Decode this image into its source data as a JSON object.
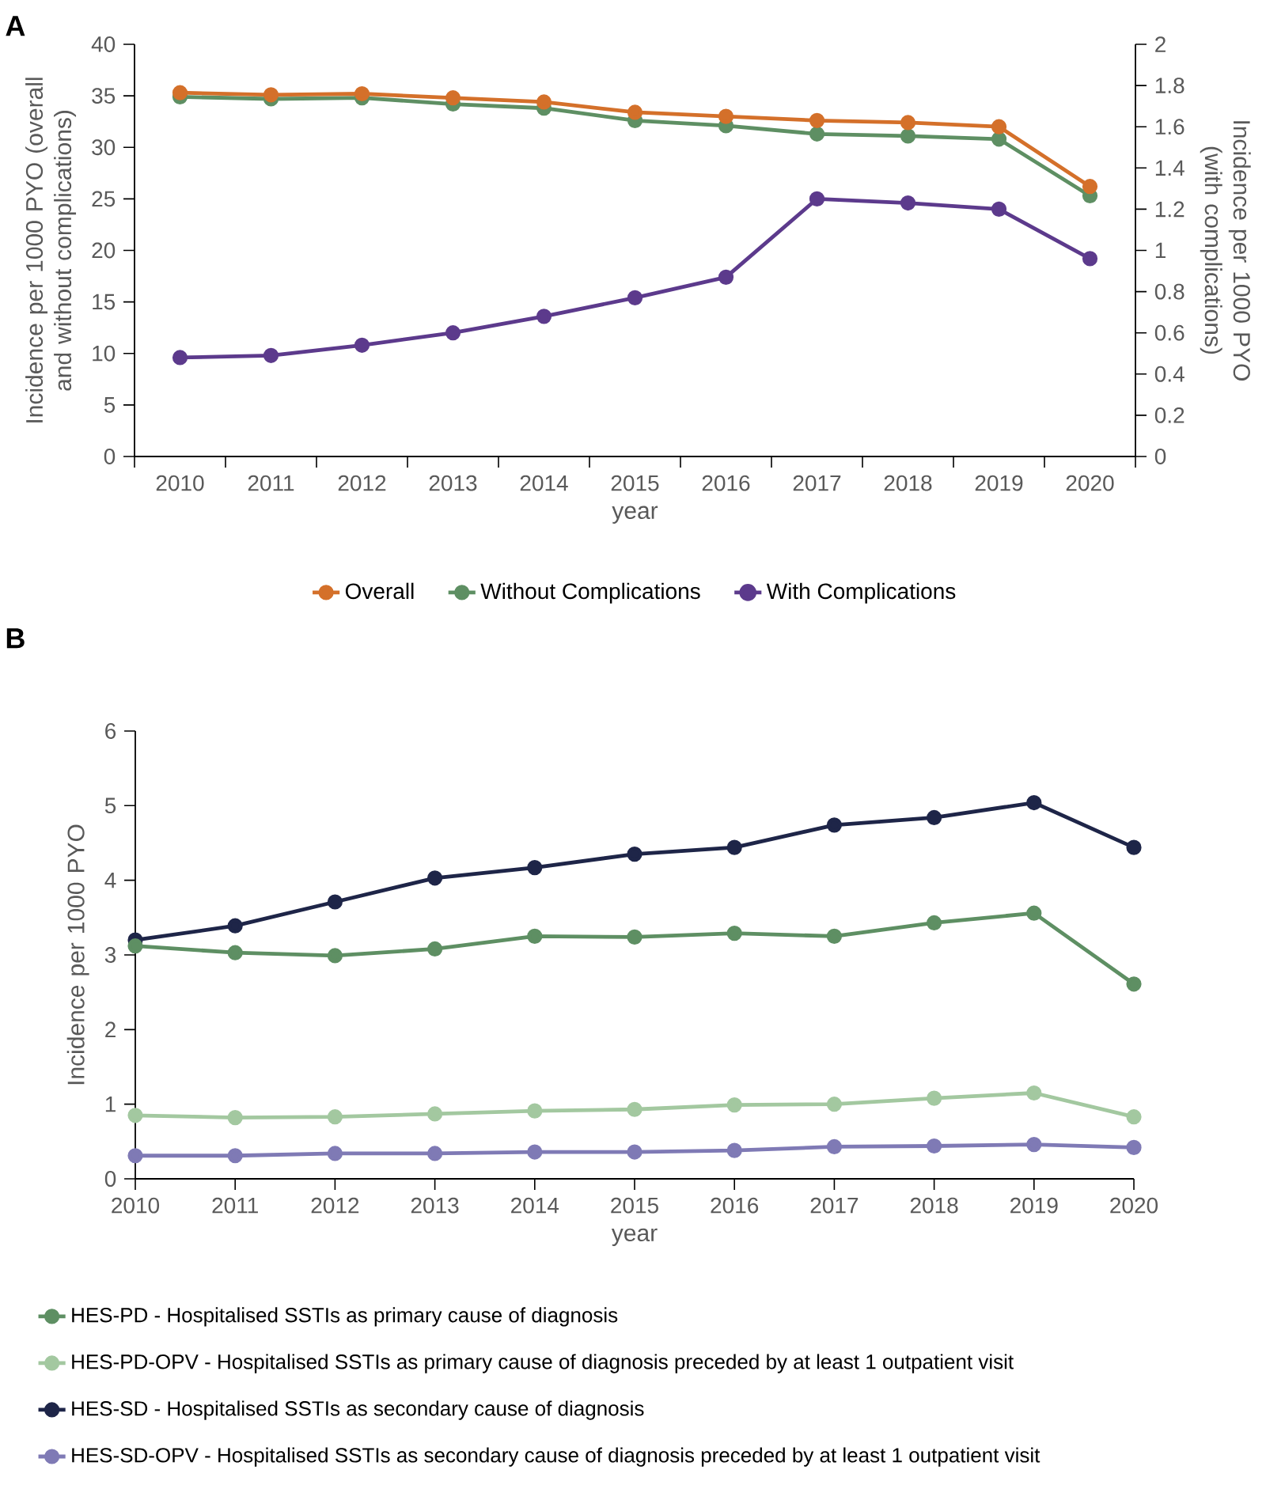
{
  "chart_data": [
    {
      "type": "line",
      "title": "A",
      "xlabel": "year",
      "ylabel": "Incidence per 1000 PYO (overall and without complications)",
      "y2label": "Incidence per 1000 PYO (with complications)",
      "categories": [
        "2010",
        "2011",
        "2012",
        "2013",
        "2014",
        "2015",
        "2016",
        "2017",
        "2018",
        "2019",
        "2020"
      ],
      "ylim": [
        0,
        40
      ],
      "yticks": [
        0,
        5,
        10,
        15,
        20,
        25,
        30,
        35,
        40
      ],
      "y2lim": [
        0,
        2
      ],
      "y2ticks": [
        0,
        0.2,
        0.4,
        0.6,
        0.8,
        1,
        1.2,
        1.4,
        1.6,
        1.8,
        2
      ],
      "marker": "circle",
      "legend": "bottom",
      "grid": false,
      "series": [
        {
          "name": "Overall",
          "color": "#d4702a",
          "values": [
            35.3,
            35.1,
            35.2,
            34.8,
            34.4,
            33.4,
            33.0,
            32.6,
            32.4,
            32.0,
            26.2
          ]
        },
        {
          "name": "Without Complications",
          "color": "#5e8f63",
          "values": [
            34.9,
            34.7,
            34.8,
            34.2,
            33.8,
            32.6,
            32.1,
            31.3,
            31.1,
            30.8,
            25.3
          ]
        },
        {
          "name": "With Complications",
          "color": "#5c3a8c",
          "axis": "y2",
          "values": [
            0.48,
            0.49,
            0.54,
            0.6,
            0.68,
            0.77,
            0.87,
            1.25,
            1.23,
            1.2,
            0.96
          ]
        }
      ]
    },
    {
      "type": "line",
      "title": "B",
      "xlabel": "year",
      "ylabel": "Incidence per 1000 PYO",
      "x": [
        2010,
        2011,
        2012,
        2013,
        2014,
        2015,
        2016,
        2017,
        2018,
        2019,
        2020
      ],
      "xlim": [
        2010,
        2020
      ],
      "xticks": [
        2010,
        2011,
        2012,
        2013,
        2014,
        2015,
        2016,
        2017,
        2018,
        2019,
        2020
      ],
      "ylim": [
        0,
        6
      ],
      "yticks": [
        0,
        1,
        2,
        3,
        4,
        5,
        6
      ],
      "marker": "circle",
      "legend": "bottom left",
      "grid": false,
      "series": [
        {
          "name": "HES-PD - Hospitalised SSTIs as primary cause of diagnosis",
          "color": "#5e8f63",
          "values": [
            3.12,
            3.03,
            2.99,
            3.08,
            3.25,
            3.24,
            3.29,
            3.25,
            3.43,
            3.56,
            2.61
          ]
        },
        {
          "name": "HES-PD-OPV - Hospitalised SSTIs as primary cause of diagnosis preceded by at least 1 outpatient visit",
          "color": "#a3c8a0",
          "values": [
            0.85,
            0.82,
            0.83,
            0.87,
            0.91,
            0.93,
            0.99,
            1.0,
            1.08,
            1.15,
            0.83
          ]
        },
        {
          "name": "HES-SD - Hospitalised SSTIs as secondary cause of diagnosis",
          "color": "#1e2548",
          "values": [
            3.2,
            3.39,
            3.71,
            4.03,
            4.17,
            4.35,
            4.44,
            4.74,
            4.84,
            5.04,
            4.44
          ]
        },
        {
          "name": "HES-SD-OPV - Hospitalised SSTIs as secondary cause of diagnosis preceded by at least 1 outpatient visit",
          "color": "#7f7ab5",
          "values": [
            0.31,
            0.31,
            0.34,
            0.34,
            0.36,
            0.36,
            0.38,
            0.43,
            0.44,
            0.46,
            0.42
          ]
        }
      ]
    }
  ]
}
